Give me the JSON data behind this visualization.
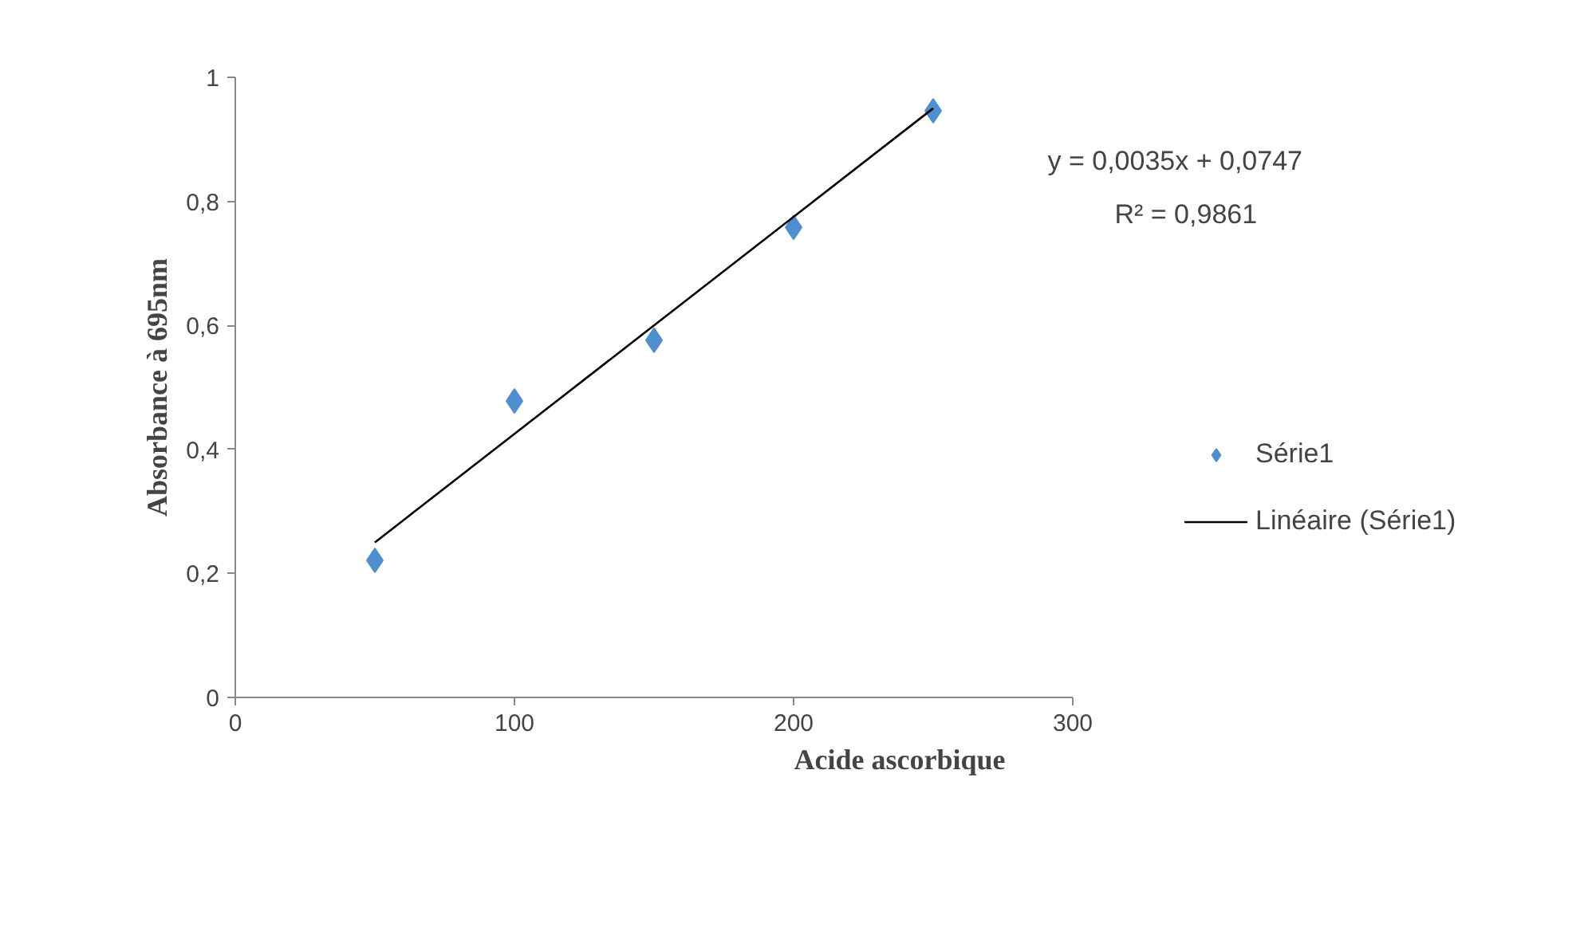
{
  "chart_data": {
    "type": "scatter",
    "xlabel": "Acide ascorbique",
    "ylabel": "Absorbance à 695nm",
    "annotations": [
      "y = 0,0035x + 0,0747",
      "R² = 0,9861"
    ],
    "xlim": [
      0,
      300
    ],
    "xticks": [
      0,
      100,
      200,
      300
    ],
    "ylim": [
      0,
      1
    ],
    "yticks": [
      0,
      {
        "value": 0.2,
        "label": "0,2"
      },
      {
        "value": 0.4,
        "label": "0,4"
      },
      {
        "value": 0.6,
        "label": "0,6"
      },
      {
        "value": 0.8,
        "label": "0,8"
      },
      1
    ],
    "grid": false,
    "legend": "right",
    "marker": "diamond",
    "series": [
      {
        "name": "Série1",
        "color": "#4f8fd0",
        "x": [
          50,
          100,
          150,
          200,
          250
        ],
        "values": [
          0.221,
          0.478,
          0.576,
          0.758,
          0.946
        ]
      },
      {
        "name": "Linéaire (Série1)",
        "type": "line",
        "color": "#000000",
        "line_style": "solid",
        "marker": "none",
        "x": [
          50,
          250
        ],
        "values": [
          0.25,
          0.95
        ]
      }
    ]
  }
}
